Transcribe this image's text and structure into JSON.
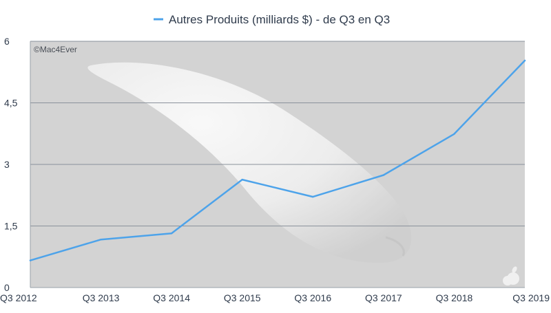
{
  "watermark": "©Mac4Ever",
  "colors": {
    "series": "#4da3ea",
    "plot_background": "#d3d3d3",
    "gridline": "#8a919b",
    "axis": "#9aa1aa",
    "text": "#2f3b4c"
  },
  "chart_data": {
    "type": "line",
    "title": "",
    "xlabel": "",
    "ylabel": "",
    "categories": [
      "Q3 2012",
      "Q3 2013",
      "Q3 2014",
      "Q3 2015",
      "Q3 2016",
      "Q3 2017",
      "Q3 2018",
      "Q3 2019"
    ],
    "series": [
      {
        "name": "Autres Produits (milliards $) - de Q3 en Q3",
        "values": [
          0.66,
          1.17,
          1.32,
          2.63,
          2.21,
          2.74,
          3.74,
          5.53
        ]
      }
    ],
    "ylim": [
      0,
      6
    ],
    "y_ticks": [
      "0",
      "1,5",
      "3",
      "4,5",
      "6"
    ],
    "y_tick_values": [
      0,
      1.5,
      3,
      4.5,
      6
    ],
    "grid": true,
    "legend_position": "top-center",
    "background_image": "apple-magic-mouse-photo"
  }
}
